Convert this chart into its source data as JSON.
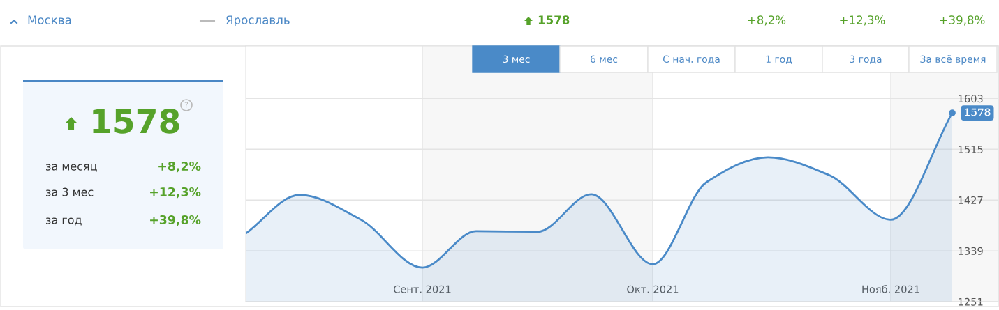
{
  "chart_data": [
    {
      "type": "other",
      "annotations": [
        "Москва",
        "Ярославль",
        "1578",
        "+8,2%",
        "+12,3%",
        "+39,8%",
        "1578",
        "за месяц",
        "+8,2%",
        "за 3 мес",
        "+12,3%",
        "за год",
        "+39,8%",
        "?"
      ]
    },
    {
      "type": "area",
      "x": [
        "2021-08-09",
        "2021-08-16",
        "2021-08-24",
        "2021-09-01",
        "2021-09-08",
        "2021-09-16",
        "2021-09-23",
        "2021-10-01",
        "2021-10-08",
        "2021-10-16",
        "2021-10-24",
        "2021-11-01",
        "2021-11-09"
      ],
      "series": [
        {
          "color": "#4a8ac8",
          "values": [
            1369,
            1436,
            1393,
            1310,
            1373,
            1372,
            1437,
            1316,
            1458,
            1501,
            1470,
            1393,
            1578
          ],
          "value_labels": [
            null,
            null,
            null,
            null,
            null,
            null,
            null,
            null,
            null,
            null,
            null,
            null,
            "1578"
          ]
        }
      ],
      "xlim": [
        "2021-08-09",
        "2021-11-15"
      ],
      "xticks": [
        {
          "value": "2021-09-01",
          "label": "Сент. 2021"
        },
        {
          "value": "2021-10-01",
          "label": "Окт. 2021"
        },
        {
          "value": "2021-11-01",
          "label": "Нояб. 2021"
        }
      ],
      "ylim": [
        1251,
        1694
      ],
      "yticks": [
        1251,
        1339,
        1427,
        1515,
        1603
      ],
      "grid": true,
      "bands": [
        {
          "axis": "x",
          "from": "2021-09-01",
          "to": "2021-10-01",
          "color": "#f7f7f7"
        },
        {
          "axis": "x",
          "from": "2021-11-01",
          "to": "2021-11-15",
          "color": "#f7f7f7"
        }
      ],
      "annotations": [
        "3 мес",
        "6 мес",
        "С нач. года",
        "1 год",
        "3 года",
        "За всё время"
      ]
    }
  ]
}
